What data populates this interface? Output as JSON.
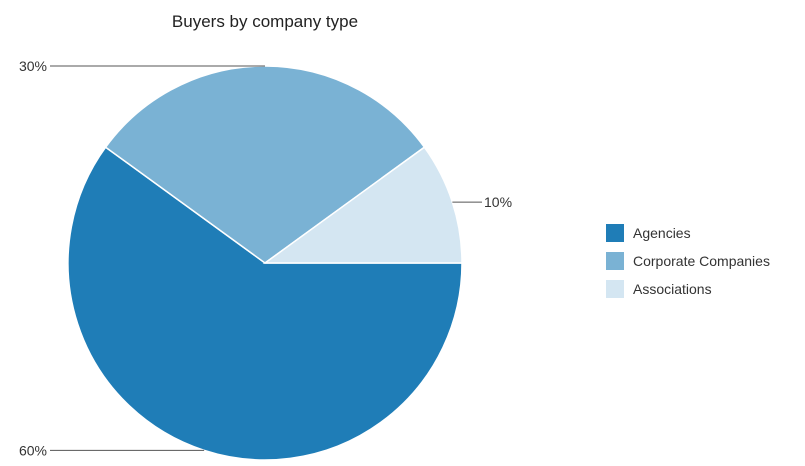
{
  "chart_data": {
    "type": "pie",
    "title": "Buyers by company type",
    "categories": [
      "Agencies",
      "Corporate Companies",
      "Associations"
    ],
    "values": [
      60,
      30,
      10
    ],
    "labels": [
      "60%",
      "30%",
      "10%"
    ],
    "colors": [
      "#1f7db7",
      "#7ab2d4",
      "#d4e6f2"
    ],
    "legend_position": "right"
  }
}
